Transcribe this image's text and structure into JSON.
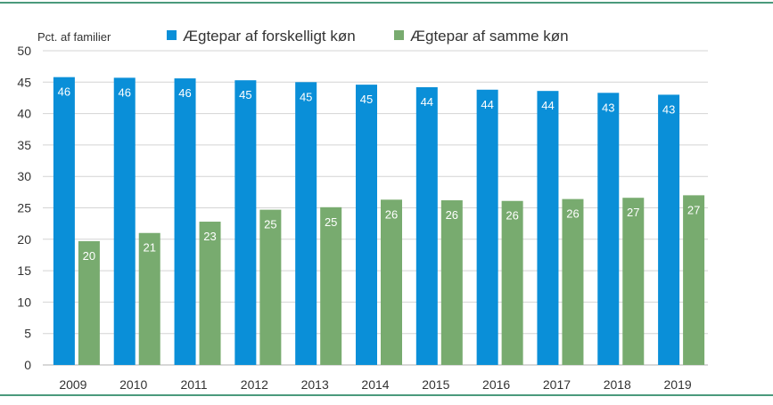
{
  "chart_data": {
    "type": "bar",
    "title": "",
    "ylabel": "Pct. af familier",
    "xlabel": "",
    "ylim": [
      0,
      50
    ],
    "yticks": [
      0,
      5,
      10,
      15,
      20,
      25,
      30,
      35,
      40,
      45,
      50
    ],
    "grid": true,
    "legend_position": "top",
    "categories": [
      "2009",
      "2010",
      "2011",
      "2012",
      "2013",
      "2014",
      "2015",
      "2016",
      "2017",
      "2018",
      "2019"
    ],
    "series": [
      {
        "name": "Ægtepar af forskelligt køn",
        "color": "#0a8fd8",
        "values": [
          45.8,
          45.7,
          45.6,
          45.3,
          45.0,
          44.6,
          44.2,
          43.8,
          43.6,
          43.3,
          43.0
        ],
        "labels": [
          "46",
          "46",
          "46",
          "45",
          "45",
          "45",
          "44",
          "44",
          "44",
          "43",
          "43"
        ]
      },
      {
        "name": "Ægtepar af samme køn",
        "color": "#78ab6f",
        "values": [
          19.7,
          21.0,
          22.8,
          24.7,
          25.1,
          26.3,
          26.2,
          26.1,
          26.4,
          26.6,
          27.0
        ],
        "labels": [
          "20",
          "21",
          "23",
          "25",
          "25",
          "26",
          "26",
          "26",
          "26",
          "27",
          "27"
        ]
      }
    ]
  }
}
